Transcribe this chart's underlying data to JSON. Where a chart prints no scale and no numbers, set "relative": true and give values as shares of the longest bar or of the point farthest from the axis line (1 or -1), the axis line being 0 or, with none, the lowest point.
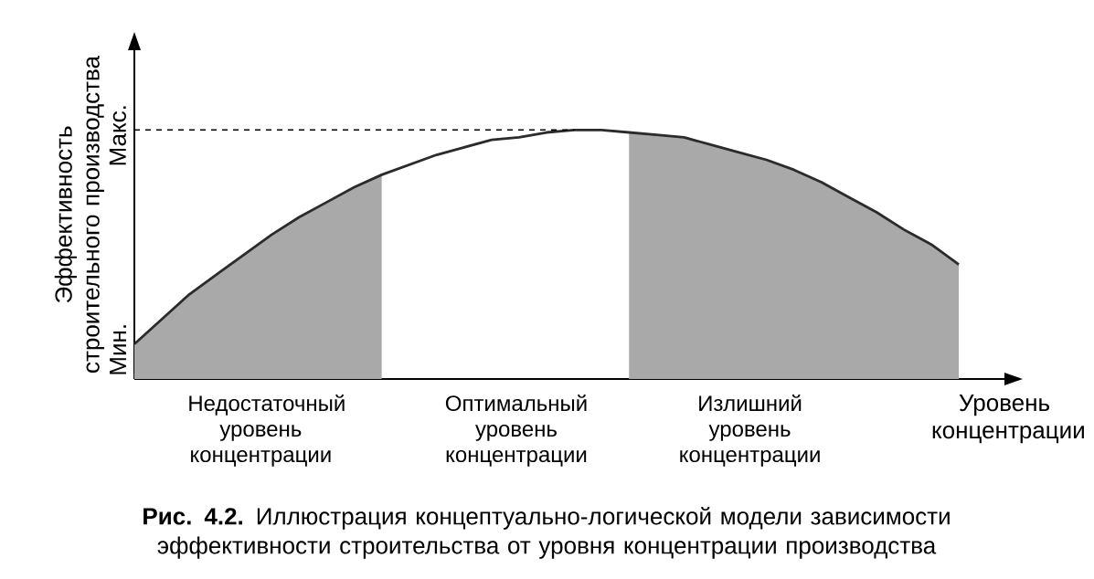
{
  "chart_data": {
    "type": "line",
    "relative": true,
    "ylabel": "Эффективность строительного производства",
    "xlabel": "Уровень концентрации",
    "categories": [
      null,
      null,
      null,
      null,
      null,
      null,
      null,
      null,
      null,
      null,
      null,
      null,
      null,
      null,
      null,
      null,
      null,
      null,
      null,
      null,
      null,
      null,
      null,
      null,
      null,
      null,
      null,
      null,
      null,
      null,
      null
    ],
    "series": [
      {
        "type": "area",
        "color": "#a9a9a9",
        "values": [
          0.14,
          0.24,
          0.34,
          0.42,
          0.5,
          0.58,
          0.65,
          0.71,
          0.77,
          0.82,
          null,
          null,
          null,
          null,
          null,
          null,
          null,
          null,
          null,
          null,
          null,
          null,
          null,
          null,
          null,
          null,
          null,
          null,
          null,
          null,
          null
        ]
      },
      {
        "type": "area",
        "color": "#a9a9a9",
        "values": [
          null,
          null,
          null,
          null,
          null,
          null,
          null,
          null,
          null,
          null,
          null,
          null,
          null,
          null,
          null,
          null,
          null,
          null,
          0.99,
          0.98,
          0.97,
          0.94,
          0.91,
          0.88,
          0.84,
          0.79,
          0.73,
          0.67,
          0.6,
          0.54,
          0.46
        ]
      },
      {
        "color": "#2b2b2b",
        "values": [
          0.14,
          0.24,
          0.34,
          0.42,
          0.5,
          0.58,
          0.65,
          0.71,
          0.77,
          0.82,
          0.86,
          0.9,
          0.93,
          0.96,
          0.97,
          0.99,
          1,
          1,
          0.99,
          0.98,
          0.97,
          0.94,
          0.91,
          0.88,
          0.84,
          0.79,
          0.73,
          0.67,
          0.6,
          0.54,
          0.46
        ]
      }
    ],
    "ref_lines": [
      {
        "axis": "y",
        "value": 1,
        "line_style": "dashed"
      }
    ],
    "annotations": [
      "Мин.",
      "Макс.",
      "Недостаточный уровень концентрации",
      "Оптимальный уровень концентрации",
      "Излишний уровень концентрации",
      "**Рис. 4.2.** Иллюстрация концептуально-логической модели зависимости эффективности строительства от уровня концентрации производства"
    ]
  }
}
